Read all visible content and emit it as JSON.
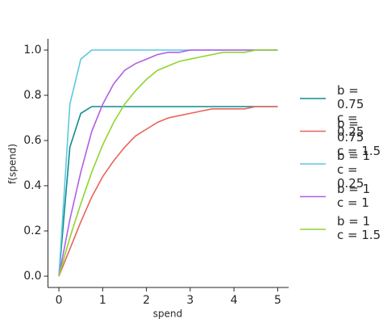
{
  "chart_data": {
    "type": "line",
    "x_label": "spend",
    "y_label": "f(spend)",
    "x": [
      0,
      0.25,
      0.5,
      0.75,
      1,
      1.25,
      1.5,
      1.75,
      2,
      2.25,
      2.5,
      2.75,
      3,
      3.25,
      3.5,
      3.75,
      4,
      4.25,
      4.5,
      4.75,
      5
    ],
    "series": [
      {
        "name": "b = 0.75\nc = 0.25",
        "color": "#0f8b8d",
        "values": [
          0,
          0.57,
          0.72,
          0.75,
          0.75,
          0.75,
          0.75,
          0.75,
          0.75,
          0.75,
          0.75,
          0.75,
          0.75,
          0.75,
          0.75,
          0.75,
          0.75,
          0.75,
          0.75,
          0.75,
          0.75
        ]
      },
      {
        "name": "b = 0.75\nc = 1.5",
        "color": "#e8645a",
        "values": [
          0,
          0.12,
          0.24,
          0.35,
          0.44,
          0.51,
          0.57,
          0.62,
          0.65,
          0.68,
          0.7,
          0.71,
          0.72,
          0.73,
          0.74,
          0.74,
          0.74,
          0.74,
          0.75,
          0.75,
          0.75
        ]
      },
      {
        "name": "b = 1\nc = 0.25",
        "color": "#5bc8e0",
        "values": [
          0,
          0.76,
          0.96,
          1,
          1,
          1,
          1,
          1,
          1,
          1,
          1,
          1,
          1,
          1,
          1,
          1,
          1,
          1,
          1,
          1,
          1
        ]
      },
      {
        "name": "b = 1\nc = 1",
        "color": "#b25ee8",
        "values": [
          0,
          0.25,
          0.46,
          0.64,
          0.76,
          0.85,
          0.91,
          0.94,
          0.96,
          0.98,
          0.99,
          0.99,
          1,
          1,
          1,
          1,
          1,
          1,
          1,
          1,
          1
        ]
      },
      {
        "name": "b = 1\nc = 1.5",
        "color": "#8fd62e",
        "values": [
          0,
          0.17,
          0.32,
          0.46,
          0.58,
          0.68,
          0.76,
          0.82,
          0.87,
          0.91,
          0.93,
          0.95,
          0.96,
          0.97,
          0.98,
          0.99,
          0.99,
          0.99,
          1,
          1,
          1
        ]
      }
    ],
    "xlim": [
      -0.25,
      5.25
    ],
    "xticks": [
      0,
      1,
      2,
      3,
      4,
      5
    ],
    "ylim": [
      -0.05,
      1.05
    ],
    "yticks": [
      {
        "value": 0,
        "label": "0.0"
      },
      {
        "value": 0.2,
        "label": "0.2"
      },
      {
        "value": 0.4,
        "label": "0.4"
      },
      {
        "value": 0.6,
        "label": "0.6"
      },
      {
        "value": 0.8,
        "label": "0.8"
      },
      {
        "value": 1,
        "label": "1.0"
      }
    ],
    "grid": false,
    "legend": "right"
  }
}
